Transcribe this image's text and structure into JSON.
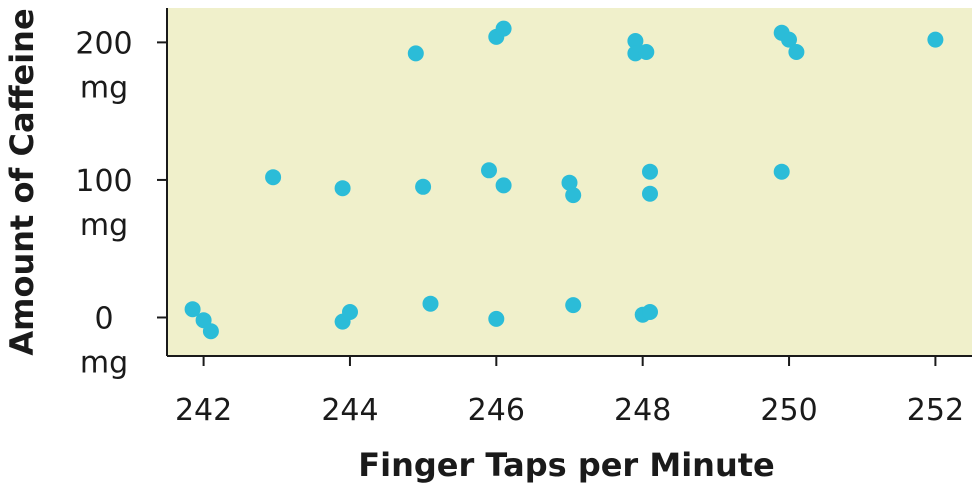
{
  "chart_data": {
    "type": "scatter",
    "xlabel": "Finger Taps per Minute",
    "ylabel": "Amount of Caffeine",
    "xlim": [
      241.5,
      252.5
    ],
    "ylim": [
      -28,
      225
    ],
    "x_ticks": [
      242,
      244,
      246,
      248,
      250,
      252
    ],
    "x_tick_labels": [
      "242",
      "244",
      "246",
      "248",
      "250",
      "252"
    ],
    "y_ticks": [
      {
        "value": 0,
        "label_value": "0",
        "label_unit": "mg"
      },
      {
        "value": 100,
        "label_value": "100",
        "label_unit": "mg"
      },
      {
        "value": 200,
        "label_value": "200",
        "label_unit": "mg"
      }
    ],
    "grid": false,
    "plot_background": "#f0f0cb",
    "point_color": "#2bbcd8",
    "axis_color": "#1a1a1a",
    "points": [
      {
        "x": 241.85,
        "y": 6
      },
      {
        "x": 242.0,
        "y": -2
      },
      {
        "x": 242.1,
        "y": -10
      },
      {
        "x": 243.9,
        "y": -3
      },
      {
        "x": 244.0,
        "y": 4
      },
      {
        "x": 245.1,
        "y": 10
      },
      {
        "x": 246.0,
        "y": -1
      },
      {
        "x": 247.05,
        "y": 9
      },
      {
        "x": 248.0,
        "y": 2
      },
      {
        "x": 248.1,
        "y": 4
      },
      {
        "x": 242.95,
        "y": 102
      },
      {
        "x": 243.9,
        "y": 94
      },
      {
        "x": 245.0,
        "y": 95
      },
      {
        "x": 245.9,
        "y": 107
      },
      {
        "x": 246.1,
        "y": 96
      },
      {
        "x": 247.0,
        "y": 98
      },
      {
        "x": 247.05,
        "y": 89
      },
      {
        "x": 248.1,
        "y": 106
      },
      {
        "x": 248.1,
        "y": 90
      },
      {
        "x": 249.9,
        "y": 106
      },
      {
        "x": 244.9,
        "y": 192
      },
      {
        "x": 246.0,
        "y": 204
      },
      {
        "x": 246.1,
        "y": 210
      },
      {
        "x": 247.9,
        "y": 201
      },
      {
        "x": 247.9,
        "y": 192
      },
      {
        "x": 248.05,
        "y": 193
      },
      {
        "x": 249.9,
        "y": 207
      },
      {
        "x": 250.0,
        "y": 202
      },
      {
        "x": 250.1,
        "y": 193
      },
      {
        "x": 252.0,
        "y": 202
      }
    ]
  }
}
